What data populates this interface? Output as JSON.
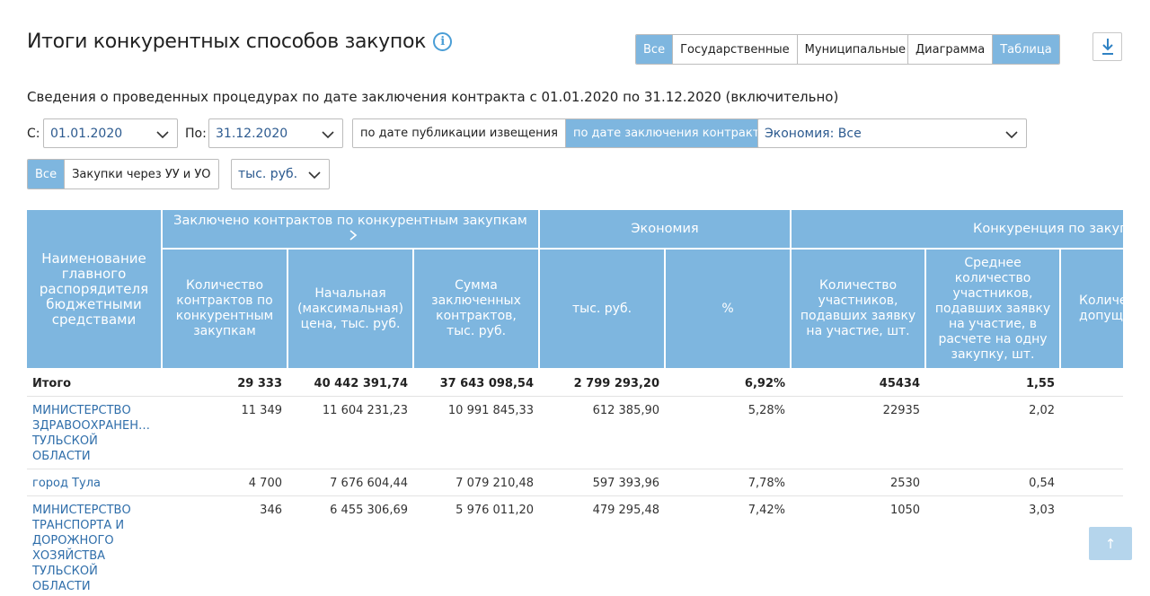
{
  "page": {
    "title": "Итоги конкурентных способов закупок",
    "subtitle": "Сведения о проведенных процедурах по дате заключения контракта с 01.01.2020 по 31.12.2020 (включительно)"
  },
  "budget_filter": {
    "all": "Все",
    "state": "Государственные",
    "municipal": "Муниципальные"
  },
  "view_toggle": {
    "chart": "Диаграмма",
    "table": "Таблица"
  },
  "filters": {
    "from_label": "С:",
    "from_value": "01.01.2020",
    "to_label": "По:",
    "to_value": "31.12.2020",
    "by_publication": "по дате публикации извещения",
    "by_contract": "по дате заключения контракта",
    "economy": "Экономия: Все",
    "scope_all": "Все",
    "scope_uu": "Закупки через УУ и УО",
    "units": "тыс. руб."
  },
  "colors": {
    "accent": "#7eb6df",
    "link": "#2f6eaa",
    "icon": "#4a9ed6"
  },
  "table": {
    "name_header": "Наименование главного распорядителя бюджетными средствами",
    "groups": {
      "contracts": "Заключено контрактов по конкурентным закупкам",
      "economy": "Экономия",
      "competition": "Конкуренция по закупкам"
    },
    "columns": {
      "count": "Количество контрактов по конкурентным закупкам",
      "nmck": "Начальная (максимальная) цена, тыс. руб.",
      "sum": "Сумма заключенных контрактов, тыс. руб.",
      "econ_rub": "тыс. руб.",
      "econ_pct": "%",
      "participants": "Количество участников, подавших заявку на участие, шт.",
      "avg_participants": "Среднее количество участников, подавших заявку на участие, в расчете на одну закупку, шт.",
      "admitted": "Количество участников, допущенных к торгам"
    },
    "total": {
      "name": "Итого",
      "count": "29 333",
      "nmck": "40 442 391,74",
      "sum": "37 643 098,54",
      "econ_rub": "2 799 293,20",
      "econ_pct": "6,92%",
      "participants": "45434",
      "avg": "1,55"
    },
    "rows": [
      {
        "name": "МИНИСТЕРСТВО ЗДРАВООХРАНЕН… ТУЛЬСКОЙ ОБЛАСТИ",
        "count": "11 349",
        "nmck": "11 604 231,23",
        "sum": "10 991 845,33",
        "econ_rub": "612 385,90",
        "econ_pct": "5,28%",
        "participants": "22935",
        "avg": "2,02"
      },
      {
        "name": "город Тула",
        "count": "4 700",
        "nmck": "7 676 604,44",
        "sum": "7 079 210,48",
        "econ_rub": "597 393,96",
        "econ_pct": "7,78%",
        "participants": "2530",
        "avg": "0,54"
      },
      {
        "name": "МИНИСТЕРСТВО ТРАНСПОРТА И ДОРОЖНОГО ХОЗЯЙСТВА ТУЛЬСКОЙ ОБЛАСТИ",
        "count": "346",
        "nmck": "6 455 306,69",
        "sum": "5 976 011,20",
        "econ_rub": "479 295,48",
        "econ_pct": "7,42%",
        "participants": "1050",
        "avg": "3,03"
      }
    ]
  },
  "scroll_top": "↑"
}
